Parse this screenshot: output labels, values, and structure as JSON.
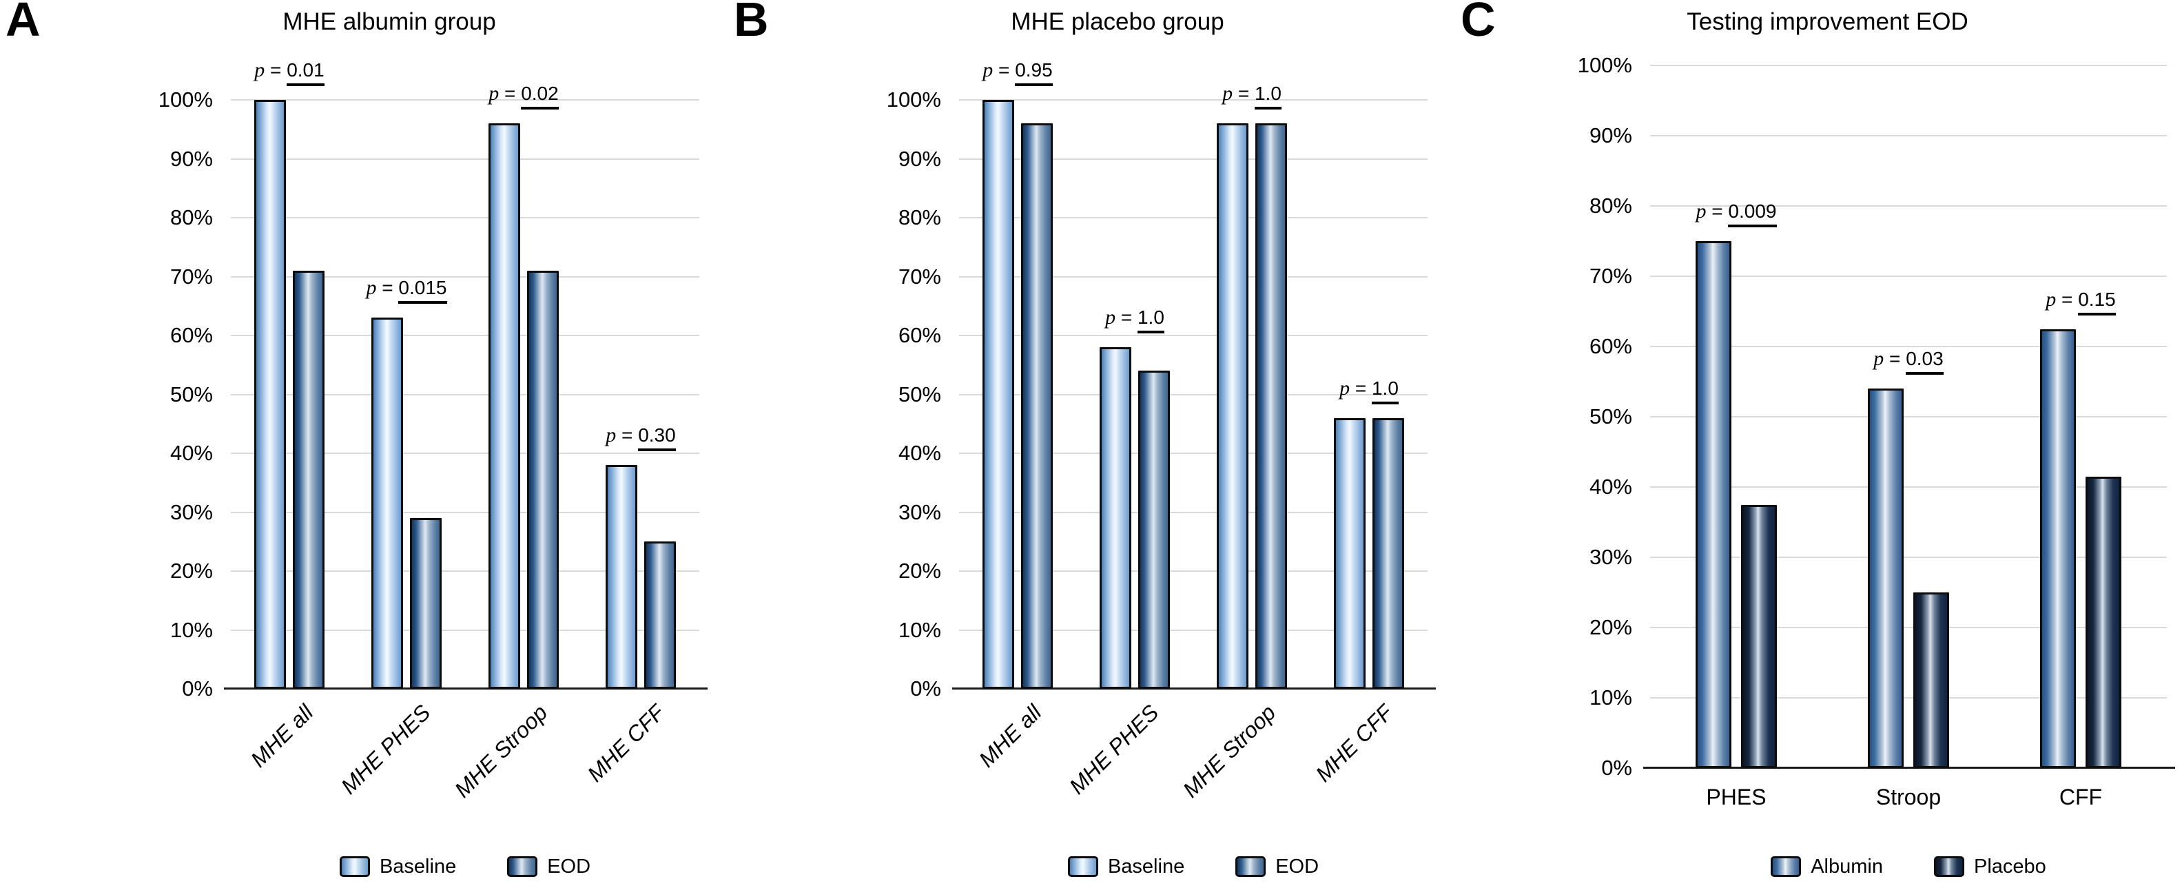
{
  "figure": {
    "background": "#ffffff",
    "description": "Three-panel bar chart figure"
  },
  "colors": {
    "baseline_fill_main": "#a9c8e9",
    "eod_fill_main": "#4a6f9d",
    "albumin_fill_main": "#4b76a8",
    "placebo_fill_main": "#16263d",
    "bar_outline": "#0d0d0d",
    "gridline": "#d9d9d9",
    "axis_line": "#1a1a1a",
    "text": "#000000"
  },
  "chart_data": [
    {
      "type": "bar",
      "panel_letter": "A",
      "title": "MHE albumin group",
      "categories": [
        "MHE all",
        "MHE PHES",
        "MHE Stroop",
        "MHE CFF"
      ],
      "series": [
        {
          "name": "Baseline",
          "style": "fill-baseline",
          "values": [
            100,
            63,
            96,
            38
          ]
        },
        {
          "name": "EOD",
          "style": "fill-eod",
          "values": [
            71,
            29,
            71,
            25
          ]
        }
      ],
      "p_label": "p",
      "p_values": [
        "0.01",
        "0.015",
        "0.02",
        "0.30"
      ],
      "ylim": [
        0,
        100
      ],
      "tick_step": 10,
      "tick_suffix": "%",
      "grid": true,
      "legend_position": "bottom",
      "x_labels_rotated": true,
      "xlabel": "",
      "ylabel": ""
    },
    {
      "type": "bar",
      "panel_letter": "B",
      "title": "MHE placebo group",
      "categories": [
        "MHE all",
        "MHE PHES",
        "MHE Stroop",
        "MHE CFF"
      ],
      "series": [
        {
          "name": "Baseline",
          "style": "fill-baseline",
          "values": [
            100,
            58,
            96,
            46
          ]
        },
        {
          "name": "EOD",
          "style": "fill-eod",
          "values": [
            96,
            54,
            96,
            46
          ]
        }
      ],
      "p_label": "p",
      "p_values": [
        "0.95",
        "1.0",
        "1.0",
        "1.0"
      ],
      "ylim": [
        0,
        100
      ],
      "tick_step": 10,
      "tick_suffix": "%",
      "grid": true,
      "legend_position": "bottom",
      "x_labels_rotated": true,
      "xlabel": "",
      "ylabel": ""
    },
    {
      "type": "bar",
      "panel_letter": "C",
      "title": "Testing improvement EOD",
      "categories": [
        "PHES",
        "Stroop",
        "CFF"
      ],
      "series": [
        {
          "name": "Albumin",
          "style": "fill-albumin",
          "values": [
            75,
            54,
            62.5
          ]
        },
        {
          "name": "Placebo",
          "style": "fill-placebo",
          "values": [
            37.5,
            25,
            41.5
          ]
        }
      ],
      "p_label": "p",
      "p_values": [
        "0.009",
        "0.03",
        "0.15"
      ],
      "ylim": [
        0,
        100
      ],
      "tick_step": 10,
      "tick_suffix": "%",
      "grid": true,
      "legend_position": "bottom",
      "x_labels_rotated": false,
      "xlabel": "",
      "ylabel": ""
    }
  ]
}
